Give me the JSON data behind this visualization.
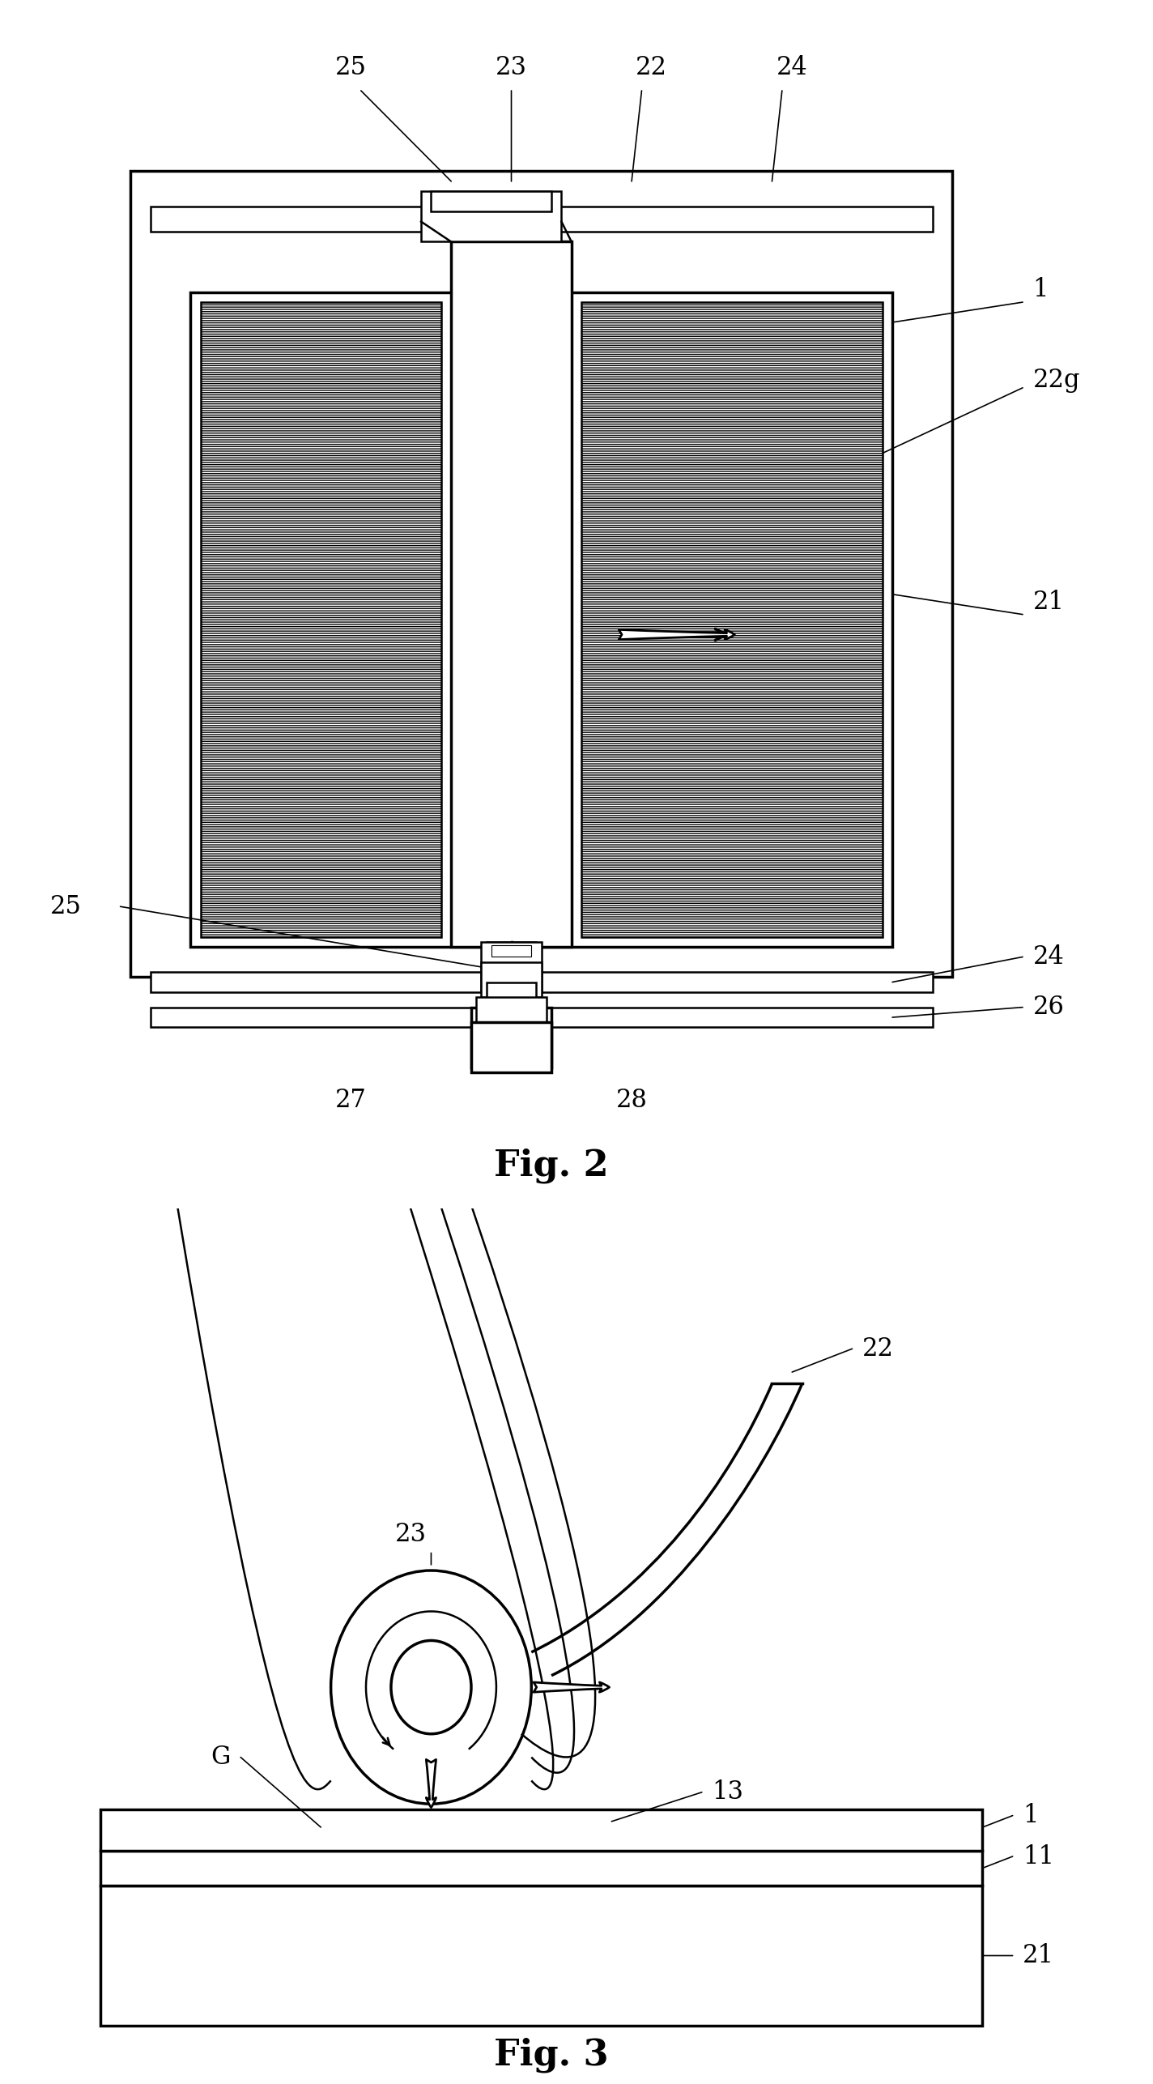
{
  "bg_color": "#ffffff",
  "line_color": "#000000",
  "fig2_title": "Fig. 2",
  "fig3_title": "Fig. 3",
  "label_size": 22,
  "title_size": 32
}
